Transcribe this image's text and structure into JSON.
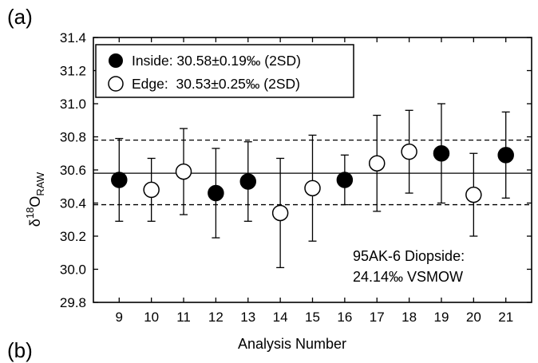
{
  "panel_labels": [
    "(a)",
    "(b)"
  ],
  "chart_data": {
    "type": "scatter",
    "xlabel": "Analysis Number",
    "ylabel_main": "δ",
    "ylabel_sup": "18",
    "ylabel_O": "O",
    "ylabel_sub": "RAW",
    "xlim": [
      8.2,
      21.8
    ],
    "ylim": [
      29.8,
      31.4
    ],
    "x_ticks": [
      9,
      10,
      11,
      12,
      13,
      14,
      15,
      16,
      17,
      18,
      19,
      20,
      21
    ],
    "y_ticks": [
      "29.8",
      "30.0",
      "30.2",
      "30.4",
      "30.6",
      "30.8",
      "31.0",
      "31.2",
      "31.4"
    ],
    "grid": false,
    "legend_position": "top-left",
    "series": [
      {
        "name": "Inside: 30.58±0.19‰ (2SD)",
        "marker": "filled-circle",
        "color": "#000000",
        "points": [
          {
            "x": 9,
            "y": 30.54,
            "err_lo": 30.29,
            "err_hi": 30.79
          },
          {
            "x": 12,
            "y": 30.46,
            "err_lo": 30.19,
            "err_hi": 30.73
          },
          {
            "x": 13,
            "y": 30.53,
            "err_lo": 30.29,
            "err_hi": 30.77
          },
          {
            "x": 16,
            "y": 30.54,
            "err_lo": 30.39,
            "err_hi": 30.69
          },
          {
            "x": 19,
            "y": 30.7,
            "err_lo": 30.4,
            "err_hi": 31.0
          },
          {
            "x": 21,
            "y": 30.69,
            "err_lo": 30.43,
            "err_hi": 30.95
          }
        ]
      },
      {
        "name": "Edge:  30.53±0.25‰ (2SD)",
        "marker": "open-circle",
        "color": "#000000",
        "points": [
          {
            "x": 10,
            "y": 30.48,
            "err_lo": 30.29,
            "err_hi": 30.67
          },
          {
            "x": 11,
            "y": 30.59,
            "err_lo": 30.33,
            "err_hi": 30.85
          },
          {
            "x": 14,
            "y": 30.34,
            "err_lo": 30.01,
            "err_hi": 30.67
          },
          {
            "x": 15,
            "y": 30.49,
            "err_lo": 30.17,
            "err_hi": 30.81
          },
          {
            "x": 17,
            "y": 30.64,
            "err_lo": 30.35,
            "err_hi": 30.93
          },
          {
            "x": 18,
            "y": 30.71,
            "err_lo": 30.46,
            "err_hi": 30.96
          },
          {
            "x": 20,
            "y": 30.45,
            "err_lo": 30.2,
            "err_hi": 30.7
          }
        ]
      }
    ],
    "reference_lines": [
      {
        "y": 30.58,
        "style": "solid"
      },
      {
        "y": 30.78,
        "style": "dashed"
      },
      {
        "y": 30.39,
        "style": "dashed"
      }
    ],
    "annotation": [
      "95AK-6 Diopside:",
      "24.14‰ VSMOW"
    ]
  }
}
